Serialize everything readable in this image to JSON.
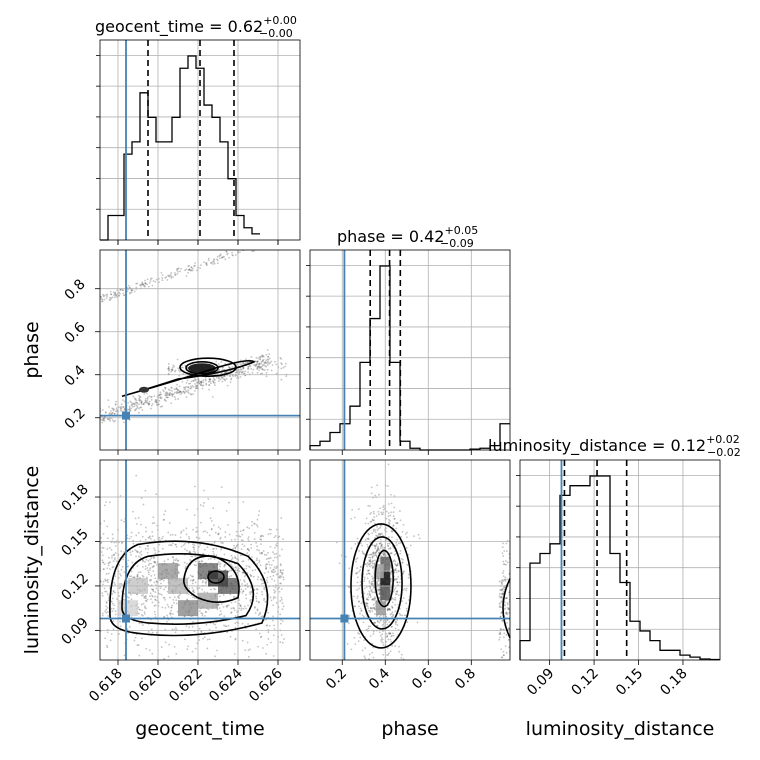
{
  "chart_data": {
    "type": "corner",
    "parameters": [
      "geocent_time",
      "phase",
      "luminosity_distance"
    ],
    "truth": {
      "geocent_time": 0.6184,
      "phase": 0.21,
      "luminosity_distance": 0.098
    },
    "axes": {
      "geocent_time": {
        "lim": [
          0.6171,
          0.6271
        ],
        "ticks": [
          0.618,
          0.62,
          0.622,
          0.624,
          0.626
        ],
        "tick_labels": [
          "0.618",
          "0.620",
          "0.622",
          "0.624",
          "0.626"
        ]
      },
      "phase": {
        "lim": [
          0.05,
          0.98
        ],
        "ticks": [
          0.2,
          0.4,
          0.6,
          0.8
        ],
        "tick_labels": [
          "0.2",
          "0.4",
          "0.6",
          "0.8"
        ]
      },
      "luminosity_distance": {
        "lim": [
          0.07,
          0.205
        ],
        "ticks": [
          0.09,
          0.12,
          0.15,
          0.18
        ],
        "tick_labels": [
          "0.09",
          "0.12",
          "0.15",
          "0.18"
        ]
      }
    },
    "titles": {
      "geocent_time": {
        "main": "geocent_time = 0.62",
        "sup": "+0.00",
        "sub": "−0.00"
      },
      "phase": {
        "main": "phase = 0.42",
        "sup": "+0.05",
        "sub": "−0.09"
      },
      "luminosity_distance": {
        "main": "luminosity_distance = 0.12",
        "sup": "+0.02",
        "sub": "−0.02"
      }
    },
    "quantiles": {
      "geocent_time": [
        0.6195,
        0.6221,
        0.6238
      ],
      "phase": [
        0.33,
        0.42,
        0.47
      ],
      "luminosity_distance": [
        0.1,
        0.122,
        0.142
      ]
    },
    "histograms": {
      "geocent_time": {
        "start": 0.6171,
        "width": 0.0004,
        "counts": [
          0,
          2,
          2,
          7,
          8,
          12,
          10,
          8,
          8,
          10,
          14,
          15,
          14,
          11,
          10,
          8,
          5,
          2,
          1,
          0.5
        ]
      },
      "phase": {
        "start": 0.05,
        "width": 0.0465,
        "counts": [
          0.5,
          1,
          2,
          3,
          5,
          10,
          15,
          21,
          10,
          1,
          0.2,
          0,
          0,
          0,
          0,
          0,
          0.1,
          0.2,
          0.5,
          3
        ]
      },
      "luminosity_distance": {
        "start": 0.07,
        "width": 0.00675,
        "counts": [
          2,
          10,
          11,
          12,
          17,
          18,
          18,
          19,
          19,
          11,
          8,
          4,
          3,
          2,
          1,
          1,
          0.5,
          0.3,
          0.1,
          0.05
        ]
      }
    },
    "grid": true
  }
}
